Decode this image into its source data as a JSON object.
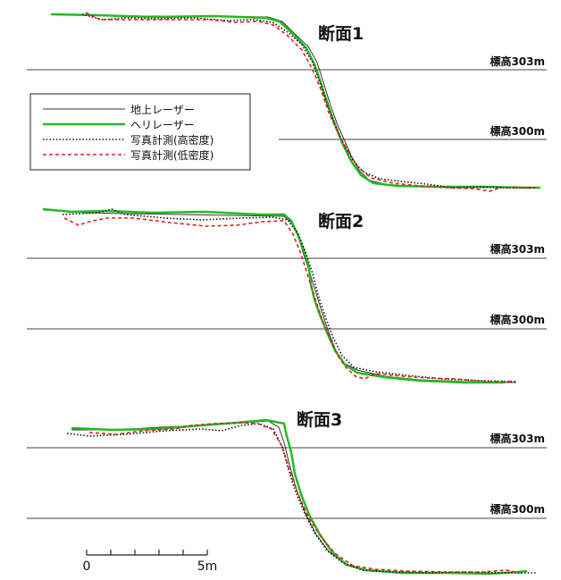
{
  "chart_data": {
    "type": "line",
    "legend": {
      "placement": "top-left",
      "entries": [
        {
          "label": "地上レーザー",
          "color": "#333333",
          "style": "solid-thin"
        },
        {
          "label": "ヘリレーザー",
          "color": "#22bb22",
          "style": "solid-thick"
        },
        {
          "label": "写真計測(高密度)",
          "color": "#111111",
          "style": "dotted"
        },
        {
          "label": "写真計測(低密度)",
          "color": "#dd2222",
          "style": "dashed"
        }
      ]
    },
    "scale_bar": {
      "start_label": "0",
      "end_label": "5m",
      "unit_m": 1,
      "length_m": 5
    },
    "sections": [
      {
        "title": "断面1",
        "elev_lines": [
          {
            "label": "標高303m",
            "value": 303
          },
          {
            "label": "標高300m",
            "value": 300
          }
        ]
      },
      {
        "title": "断面2",
        "elev_lines": [
          {
            "label": "標高303m",
            "value": 303
          },
          {
            "label": "標高300m",
            "value": 300
          }
        ]
      },
      {
        "title": "断面3",
        "elev_lines": [
          {
            "label": "標高303m",
            "value": 303
          },
          {
            "label": "標高300m",
            "value": 300
          }
        ]
      }
    ]
  }
}
